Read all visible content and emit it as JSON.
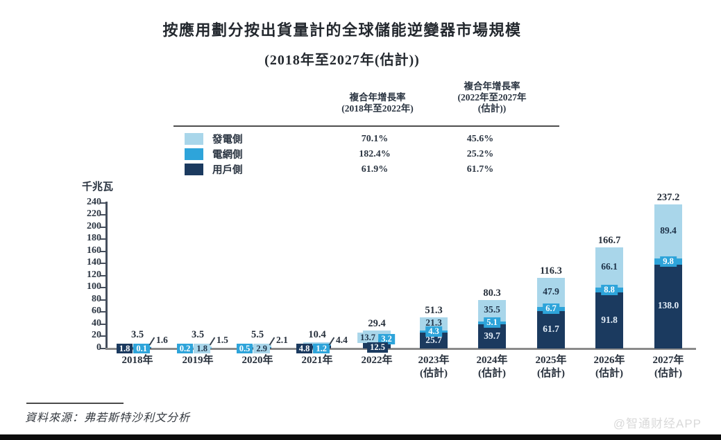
{
  "title": {
    "line1": "按應用劃分按出貨量計的全球儲能逆變器市場規模",
    "line2": "(2018年至2027年(估計))"
  },
  "legend": {
    "col1_header": [
      "複合年增長率",
      "(2018年至2022年)"
    ],
    "col2_header": [
      "複合年增長率",
      "(2022年至2027年",
      "(估計))"
    ],
    "rows": [
      {
        "series": "gen",
        "label": "發電側",
        "cagr1": "70.1%",
        "cagr2": "45.6%"
      },
      {
        "series": "grid",
        "label": "電網側",
        "cagr1": "182.4%",
        "cagr2": "25.2%"
      },
      {
        "series": "user",
        "label": "用戶側",
        "cagr1": "61.9%",
        "cagr2": "61.7%"
      }
    ]
  },
  "colors": {
    "gen": "#a9d6ea",
    "grid": "#2ea4da",
    "user": "#1b3a5f",
    "dark_text": "#1e3248",
    "light_text": "#e4eef8"
  },
  "chart_data": {
    "type": "bar",
    "stacked": true,
    "title": "按應用劃分按出貨量計的全球儲能逆變器市場規模 (2018年至2027年(估計))",
    "unit_label": "千兆瓦",
    "ylim": [
      0,
      240
    ],
    "ytick_step": 20,
    "grid": false,
    "legend_position": "top",
    "categories": [
      [
        "2018年"
      ],
      [
        "2019年"
      ],
      [
        "2020年"
      ],
      [
        "2021年"
      ],
      [
        "2022年"
      ],
      [
        "2023年",
        "(估計)"
      ],
      [
        "2024年",
        "(估計)"
      ],
      [
        "2025年",
        "(估計)"
      ],
      [
        "2026年",
        "(估計)"
      ],
      [
        "2027年",
        "(估計)"
      ]
    ],
    "series": [
      {
        "key": "user",
        "name": "用戶側",
        "values": [
          1.8,
          1.5,
          2.1,
          4.8,
          12.5,
          25.7,
          39.7,
          61.7,
          91.8,
          138.0
        ]
      },
      {
        "key": "grid",
        "name": "電網側",
        "values": [
          0.1,
          0.2,
          0.5,
          1.2,
          3.2,
          4.3,
          5.1,
          6.7,
          8.8,
          9.8
        ]
      },
      {
        "key": "gen",
        "name": "發電側",
        "values": [
          1.6,
          1.8,
          2.9,
          4.4,
          13.7,
          21.3,
          35.5,
          47.9,
          66.1,
          89.4
        ]
      }
    ],
    "totals": [
      "3.5",
      "3.5",
      "5.5",
      "10.4",
      "29.4",
      "51.3",
      "80.3",
      "116.3",
      "166.7",
      "237.2"
    ],
    "year_label_layout": [
      {
        "mode": "flat",
        "badges": [
          {
            "s": "user",
            "t": "1.8"
          },
          {
            "s": "grid",
            "t": "0.1"
          }
        ],
        "callout": "1.6"
      },
      {
        "mode": "flat",
        "badges": [
          {
            "s": "grid",
            "t": "0.2"
          },
          {
            "s": "gen",
            "t": "1.8"
          }
        ],
        "callout": "1.5"
      },
      {
        "mode": "flat",
        "badges": [
          {
            "s": "grid",
            "t": "0.5"
          },
          {
            "s": "gen",
            "t": "2.9"
          }
        ],
        "callout": "2.1"
      },
      {
        "mode": "flat",
        "badges": [
          {
            "s": "user",
            "t": "4.8"
          },
          {
            "s": "grid",
            "t": "1.2"
          }
        ],
        "callout": "4.4"
      },
      {
        "mode": "badges",
        "labels": [
          {
            "s": "gen",
            "t": "13.7",
            "dx": -13,
            "dyb": 16
          },
          {
            "s": "grid",
            "t": "3.2",
            "dx": 14,
            "dyb": 14
          },
          {
            "s": "user",
            "t": "12.5",
            "dx": 1,
            "dyb": 2
          }
        ]
      },
      {
        "mode": "stacked",
        "labels": [
          {
            "s": "gen",
            "t": "21.3",
            "type": "inside"
          },
          {
            "s": "grid",
            "t": "4.3",
            "type": "badge"
          },
          {
            "s": "user",
            "t": "25.7",
            "type": "inside"
          }
        ]
      },
      {
        "mode": "stacked",
        "labels": [
          {
            "s": "gen",
            "t": "35.5",
            "type": "inside"
          },
          {
            "s": "grid",
            "t": "5.1",
            "type": "badge"
          },
          {
            "s": "user",
            "t": "39.7",
            "type": "inside"
          }
        ]
      },
      {
        "mode": "stacked",
        "labels": [
          {
            "s": "gen",
            "t": "47.9",
            "type": "inside"
          },
          {
            "s": "grid",
            "t": "6.7",
            "type": "badge"
          },
          {
            "s": "user",
            "t": "61.7",
            "type": "inside"
          }
        ]
      },
      {
        "mode": "stacked",
        "labels": [
          {
            "s": "gen",
            "t": "66.1",
            "type": "inside"
          },
          {
            "s": "grid",
            "t": "8.8",
            "type": "badge"
          },
          {
            "s": "user",
            "t": "91.8",
            "type": "inside"
          }
        ]
      },
      {
        "mode": "stacked",
        "labels": [
          {
            "s": "gen",
            "t": "89.4",
            "type": "inside"
          },
          {
            "s": "grid",
            "t": "9.8",
            "type": "badge"
          },
          {
            "s": "user",
            "t": "138.0",
            "type": "inside"
          }
        ]
      }
    ]
  },
  "source": {
    "text": "資料來源：弗若斯特沙利文分析"
  },
  "watermark": {
    "text": "@智通财经APP"
  }
}
